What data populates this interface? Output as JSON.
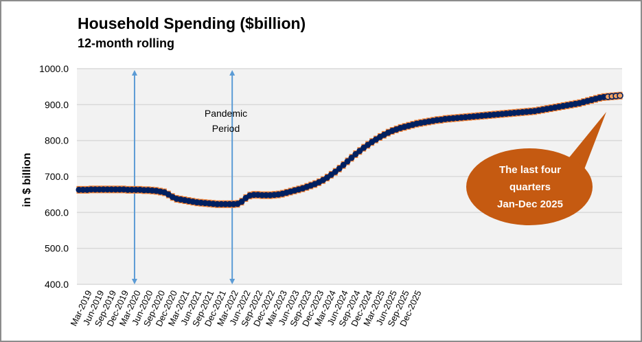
{
  "chart_data": {
    "type": "line",
    "title": "Household Spending ($billion)",
    "subtitle": "12-month rolling",
    "ylabel": "in $ billion",
    "xlabel": "",
    "ylim": [
      400,
      1000
    ],
    "yticks": [
      "1000.0",
      "900.0",
      "800.0",
      "700.0",
      "600.0",
      "500.0",
      "400.0"
    ],
    "ytick_values": [
      1000,
      900,
      800,
      700,
      600,
      500,
      400
    ],
    "grid": true,
    "x_tick_labels": [
      "Mar-2019",
      "Jun-2019",
      "Sep-2019",
      "Dec-2019",
      "Mar-2020",
      "Jun-2020",
      "Sep-2020",
      "Dec-2020",
      "Mar-2021",
      "Jun-2021",
      "Sep-2021",
      "Dec-2021",
      "Mar-2022",
      "Jun-2022",
      "Sep-2022",
      "Dec-2022",
      "Mar-2023",
      "Jun-2023",
      "Sep-2023",
      "Dec-2023",
      "Mar-2024",
      "Jun-2024",
      "Sep-2024",
      "Dec-2024",
      "Mar-2025",
      "Jun-2025",
      "Sep-2025",
      "Dec-2025"
    ],
    "x_start": "Jan-2019",
    "x_frequency": "monthly",
    "series": [
      {
        "name": "Household Spending (12-month rolling)",
        "marker_style": "filled",
        "values": [
          663,
          663,
          663,
          664,
          664,
          664,
          664,
          664,
          664,
          664,
          664,
          664,
          663,
          663,
          663,
          663,
          662,
          662,
          661,
          660,
          658,
          656,
          650,
          643,
          638,
          636,
          634,
          632,
          630,
          628,
          627,
          626,
          625,
          624,
          623,
          623,
          623,
          623,
          623,
          624,
          630,
          640,
          647,
          649,
          649,
          648,
          648,
          648,
          649,
          650,
          652,
          655,
          658,
          661,
          664,
          667,
          671,
          675,
          679,
          684,
          690,
          697,
          705,
          713,
          722,
          732,
          742,
          752,
          762,
          771,
          780,
          788,
          796,
          803,
          810,
          816,
          822,
          827,
          831,
          835,
          838,
          841,
          844,
          847,
          849,
          851,
          853,
          855,
          857,
          858,
          860,
          861,
          862,
          863,
          864,
          865,
          866,
          867,
          868,
          869,
          870,
          871,
          872,
          873,
          874,
          875,
          876,
          877,
          878,
          879,
          880,
          881,
          882,
          884,
          886,
          888,
          890,
          892,
          894,
          896,
          898,
          900,
          902,
          904,
          907,
          910,
          913,
          916,
          919,
          921,
          922,
          923,
          924,
          925
        ]
      }
    ],
    "highlight": {
      "name": "Last four quarters (Jan-Dec 2025)",
      "marker_style": "open",
      "count": 4
    },
    "annotations": {
      "pandemic_label_line1": "Pandemic",
      "pandemic_label_line2": "Period",
      "pandemic_start": "Mar-2020",
      "pandemic_end": "Mar-2022",
      "callout_line1": "The last four",
      "callout_line2": "quarters",
      "callout_line3": "Jan-Dec 2025"
    }
  },
  "colors": {
    "plot_bg": "#f2f2f2",
    "gridline": "#d9d9d9",
    "marker_fill": "#002060",
    "marker_outline": "#ed7d31",
    "arrow": "#5b9bd5",
    "callout": "#c55a11",
    "open_marker_fill": "#f4a261"
  }
}
